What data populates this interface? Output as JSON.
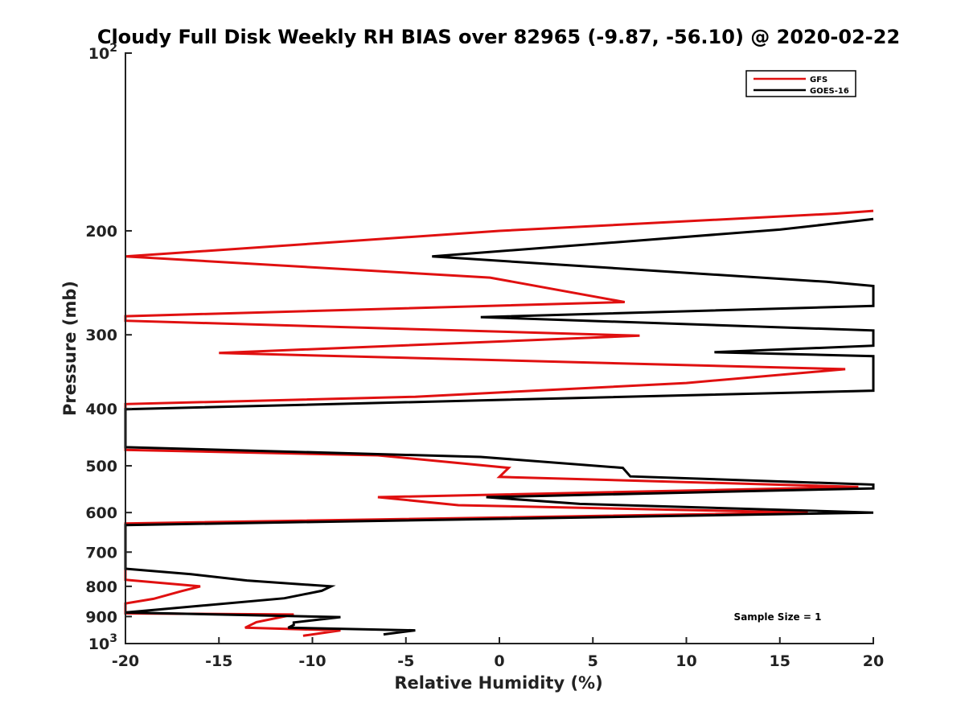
{
  "chart_data": {
    "type": "line",
    "title": "Cloudy Full Disk Weekly RH BIAS over 82965 (-9.87, -56.10) @ 2020-02-22",
    "xlabel": "Relative Humidity (%)",
    "ylabel": "Pressure (mb)",
    "xlim": [
      -20,
      20
    ],
    "ylim": [
      100,
      1000
    ],
    "yscale": "log",
    "y_reversed": true,
    "grid": false,
    "legend_position": "top-right",
    "x_ticks": [
      -20,
      -15,
      -10,
      -5,
      0,
      5,
      10,
      15,
      20
    ],
    "x_tick_labels": [
      "-20",
      "-15",
      "-10",
      "-5",
      "0",
      "5",
      "10",
      "15",
      "20"
    ],
    "y_ticks": [
      {
        "value": 100,
        "base": "10",
        "exp": "2"
      },
      {
        "value": 200,
        "label": "200"
      },
      {
        "value": 300,
        "label": "300"
      },
      {
        "value": 400,
        "label": "400"
      },
      {
        "value": 500,
        "label": "500"
      },
      {
        "value": 600,
        "label": "600"
      },
      {
        "value": 700,
        "label": "700"
      },
      {
        "value": 800,
        "label": "800"
      },
      {
        "value": 900,
        "label": "900"
      },
      {
        "value": 1000,
        "base": "10",
        "exp": "3"
      }
    ],
    "series": [
      {
        "name": "GFS",
        "color": "#e01010",
        "points": [
          [
            20,
            185
          ],
          [
            18,
            187
          ],
          [
            0,
            200
          ],
          [
            -20,
            221
          ],
          [
            -0.5,
            240
          ],
          [
            6.7,
            264
          ],
          [
            -20,
            279
          ],
          [
            -20,
            284
          ],
          [
            7.5,
            301
          ],
          [
            -15,
            322
          ],
          [
            18.5,
            343
          ],
          [
            10,
            362
          ],
          [
            -4.5,
            382
          ],
          [
            -20,
            393
          ],
          [
            -20,
            470
          ],
          [
            -6.5,
            480
          ],
          [
            0.5,
            504
          ],
          [
            0,
            522
          ],
          [
            19.2,
            543
          ],
          [
            -6.5,
            565
          ],
          [
            -2.2,
            583
          ],
          [
            16.5,
            600
          ],
          [
            -20,
            626
          ],
          [
            -20,
            780
          ],
          [
            -16,
            800
          ],
          [
            -17,
            815
          ],
          [
            -18.5,
            840
          ],
          [
            -20,
            855
          ],
          [
            -20,
            889
          ],
          [
            -11,
            893
          ],
          [
            -13,
            920
          ],
          [
            -13.6,
            940
          ],
          [
            -8.5,
            950
          ],
          [
            -10.5,
            970
          ]
        ]
      },
      {
        "name": "GOES-16",
        "color": "#000000",
        "points": [
          [
            20,
            191
          ],
          [
            15,
            199
          ],
          [
            -3.6,
            221
          ],
          [
            17.5,
            244
          ],
          [
            20,
            248
          ],
          [
            20,
            268
          ],
          [
            -1,
            280
          ],
          [
            20,
            295
          ],
          [
            20,
            313
          ],
          [
            11.5,
            321
          ],
          [
            20,
            326
          ],
          [
            20,
            373
          ],
          [
            -20,
            401
          ],
          [
            -20,
            465
          ],
          [
            -1,
            483
          ],
          [
            6.6,
            504
          ],
          [
            7,
            521
          ],
          [
            20,
            538
          ],
          [
            20,
            546
          ],
          [
            -0.7,
            565
          ],
          [
            4.3,
            580
          ],
          [
            20,
            600
          ],
          [
            -20,
            630
          ],
          [
            -20,
            747
          ],
          [
            -16.5,
            763
          ],
          [
            -13.5,
            782
          ],
          [
            -9,
            800
          ],
          [
            -9.5,
            814
          ],
          [
            -11.5,
            838
          ],
          [
            -20,
            886
          ],
          [
            -8.5,
            902
          ],
          [
            -11,
            921
          ],
          [
            -11,
            930
          ],
          [
            -11.3,
            940
          ],
          [
            -4.5,
            950
          ],
          [
            -6.2,
            965
          ]
        ]
      }
    ],
    "annotations": [
      "Sample Size = 1"
    ]
  }
}
